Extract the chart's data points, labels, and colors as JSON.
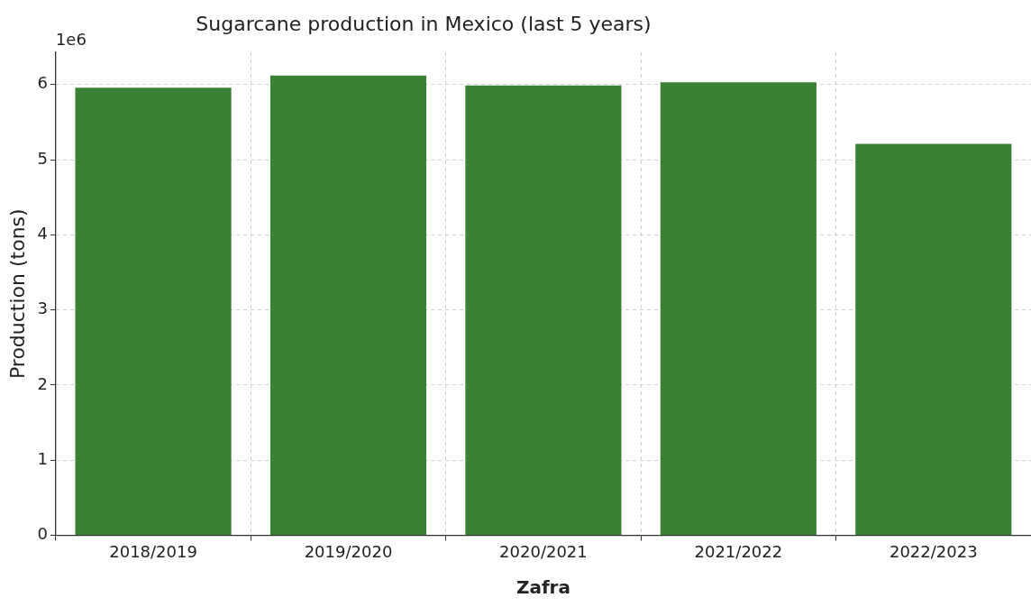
{
  "chart_data": {
    "type": "bar",
    "title": "Sugarcane production in Mexico (last 5 years)",
    "xlabel": "Zafra",
    "ylabel": "Production (tons)",
    "categories": [
      "2018/2019",
      "2019/2020",
      "2020/2021",
      "2021/2022",
      "2022/2023"
    ],
    "values": [
      5.96,
      6.12,
      5.99,
      6.03,
      5.21
    ],
    "color": "#3a8035",
    "ylim": [
      0,
      6.43
    ],
    "yticks": [
      0,
      1,
      2,
      3,
      4,
      5,
      6
    ],
    "grid": true,
    "annotations": [
      "1e6"
    ]
  }
}
